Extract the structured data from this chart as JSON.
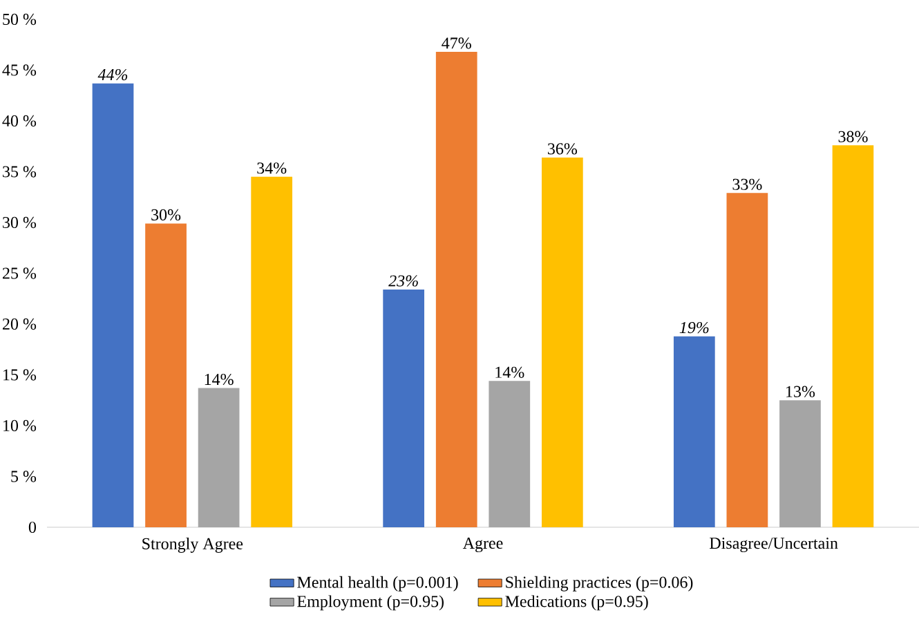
{
  "chart_data": {
    "type": "bar",
    "categories": [
      "Strongly Agree",
      "Agree",
      "Disagree/Uncertain"
    ],
    "series": [
      {
        "name": "Mental health (p=0.001)",
        "color": "#4472c4",
        "values": [
          43.7,
          23.4,
          18.8
        ],
        "value_labels": [
          "*44%*",
          "*23%*",
          "*19%*"
        ]
      },
      {
        "name": "Shielding practices (p=0.06)",
        "color": "#ed7d31",
        "values": [
          29.9,
          46.8,
          32.9
        ],
        "value_labels": [
          "30%",
          "47%",
          "33%"
        ]
      },
      {
        "name": "Employment (p=0.95)",
        "color": "#a5a5a5",
        "values": [
          13.7,
          14.4,
          12.5
        ],
        "value_labels": [
          "14%",
          "14%",
          "13%"
        ]
      },
      {
        "name": "Medications (p=0.95)",
        "color": "#ffc000",
        "values": [
          34.5,
          36.4,
          37.6
        ],
        "value_labels": [
          "34%",
          "36%",
          "38%"
        ]
      }
    ],
    "ylim": [
      0,
      50
    ],
    "yticks": [
      {
        "value": 0,
        "label": "0"
      },
      {
        "value": 5,
        "label": "5 %"
      },
      {
        "value": 10,
        "label": "10 %"
      },
      {
        "value": 15,
        "label": "15 %"
      },
      {
        "value": 20,
        "label": "20 %"
      },
      {
        "value": 25,
        "label": "25 %"
      },
      {
        "value": 30,
        "label": "30 %"
      },
      {
        "value": 35,
        "label": "35 %"
      },
      {
        "value": 40,
        "label": "40 %"
      },
      {
        "value": 45,
        "label": "45 %"
      },
      {
        "value": 50,
        "label": "50 %"
      }
    ],
    "legend": "bottom"
  }
}
